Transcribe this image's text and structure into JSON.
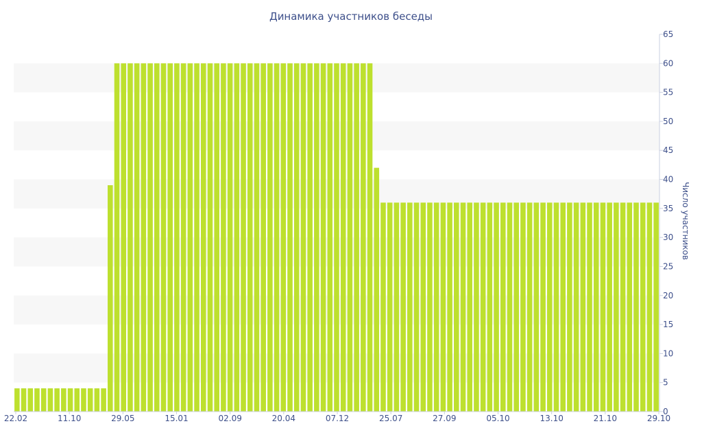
{
  "chart_data": {
    "type": "bar",
    "title": "Динамика участников беседы",
    "xlabel": "",
    "ylabel": "Число участников",
    "ylim": [
      0,
      65
    ],
    "y_ticks": [
      0,
      5,
      10,
      15,
      20,
      25,
      30,
      35,
      40,
      45,
      50,
      55,
      60,
      65
    ],
    "x_tick_labels": [
      "22.02",
      "11.10",
      "29.05",
      "15.01",
      "02.09",
      "20.04",
      "07.12",
      "25.07",
      "27.09",
      "05.10",
      "13.10",
      "21.10",
      "29.10"
    ],
    "grid": "alternating horizontal bands",
    "y_axis_position": "right",
    "bar_color": "#bde02e",
    "band_color": "#f7f7f7",
    "text_color": "#3d4f8a",
    "segments": [
      {
        "value": 4,
        "count": 14
      },
      {
        "value": 39,
        "count": 1
      },
      {
        "value": 60,
        "count": 39
      },
      {
        "value": 42,
        "count": 1
      },
      {
        "value": 36,
        "count": 42
      }
    ]
  }
}
